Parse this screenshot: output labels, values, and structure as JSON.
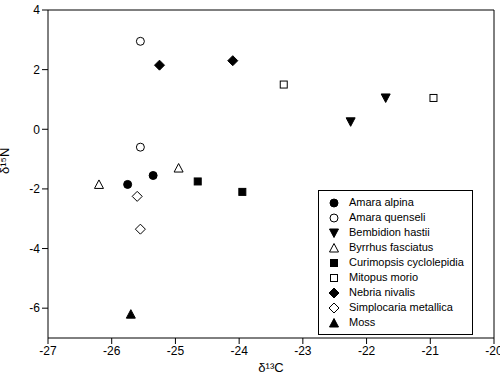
{
  "chart_data": {
    "type": "scatter",
    "x_label": "δ¹³C",
    "y_label": "δ¹⁵N",
    "xlim": [
      -27,
      -20
    ],
    "xticks": [
      -27,
      -26,
      -25,
      -24,
      -23,
      -22,
      -21,
      -20
    ],
    "ylim": [
      -7,
      4
    ],
    "yticks": [
      -6,
      -4,
      -2,
      0,
      2,
      4
    ],
    "grid": false,
    "legend": "lower right",
    "series": [
      {
        "name": "Amara alpina",
        "color": "#000000",
        "marker": "circle",
        "x": [
          -25.75,
          -25.35
        ],
        "values": [
          -1.85,
          -1.55
        ]
      },
      {
        "name": "Amara quenseli",
        "color": "#000000",
        "marker": "circle-open",
        "x": [
          -25.55,
          -25.55
        ],
        "values": [
          2.95,
          -0.6
        ]
      },
      {
        "name": "Bembidion hastii",
        "color": "#000000",
        "marker": "triangle-down",
        "x": [
          -22.25,
          -21.7
        ],
        "values": [
          0.25,
          1.05
        ]
      },
      {
        "name": "Byrrhus fasciatus",
        "color": "#000000",
        "marker": "triangle-open",
        "x": [
          -26.2,
          -24.95
        ],
        "values": [
          -1.85,
          -1.3
        ]
      },
      {
        "name": "Curimopsis cyclolepidia",
        "color": "#000000",
        "marker": "square",
        "x": [
          -24.65,
          -23.95
        ],
        "values": [
          -1.75,
          -2.1
        ]
      },
      {
        "name": "Mitopus morio",
        "color": "#000000",
        "marker": "square-open",
        "x": [
          -23.3,
          -20.95
        ],
        "values": [
          1.5,
          1.05
        ]
      },
      {
        "name": "Nebria nivalis",
        "color": "#000000",
        "marker": "diamond",
        "x": [
          -25.25,
          -24.1
        ],
        "values": [
          2.15,
          2.3
        ]
      },
      {
        "name": "Simplocaria metallica",
        "color": "#000000",
        "marker": "diamond-open",
        "x": [
          -25.6,
          -25.55
        ],
        "values": [
          -2.25,
          -3.35
        ]
      },
      {
        "name": "Moss",
        "color": "#000000",
        "marker": "triangle",
        "x": [
          -25.7
        ],
        "values": [
          -6.2
        ]
      }
    ]
  }
}
